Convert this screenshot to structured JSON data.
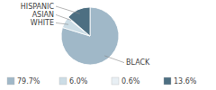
{
  "chart_data": {
    "type": "pie",
    "categories": [
      "BLACK",
      "WHITE",
      "ASIAN",
      "HISPANIC"
    ],
    "values": [
      79.7,
      6.0,
      0.6,
      13.6
    ],
    "value_labels": [
      "79.7%",
      "6.0%",
      "0.6%",
      "13.6%"
    ],
    "colors": [
      "#a0b8c8",
      "#ccdde6",
      "#e8eff4",
      "#4d6f82"
    ]
  }
}
